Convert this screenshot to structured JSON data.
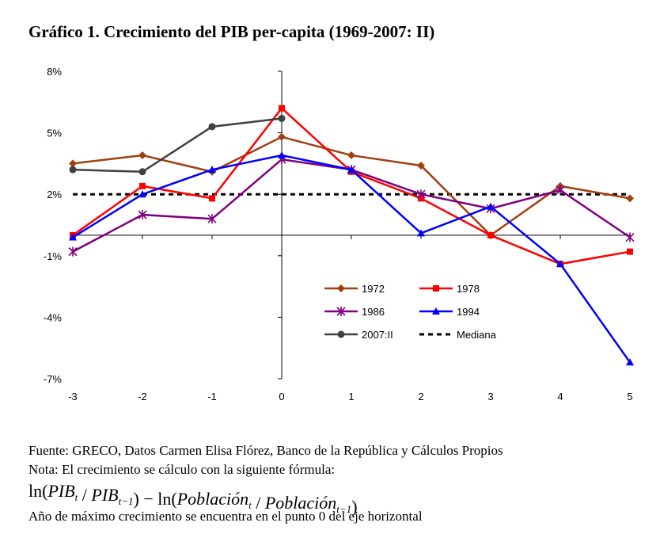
{
  "chart_data": {
    "type": "line",
    "title": "Gráfico 1. Crecimiento del PIB per-capita (1969-2007: II)",
    "x": [
      -3,
      -2,
      -1,
      0,
      1,
      2,
      3,
      4,
      5
    ],
    "xlim": [
      -3,
      5
    ],
    "xticks": [
      -3,
      -2,
      -1,
      0,
      1,
      2,
      3,
      4,
      5
    ],
    "ylim": [
      -7,
      8
    ],
    "yticks": [
      {
        "value": 8,
        "label": "8%"
      },
      {
        "value": 5,
        "label": "5%"
      },
      {
        "value": 2,
        "label": "2%"
      },
      {
        "value": -1,
        "label": "-1%"
      },
      {
        "value": -4,
        "label": "-4%"
      },
      {
        "value": -7,
        "label": "-7%"
      }
    ],
    "grid": false,
    "legend": "center right",
    "series": [
      {
        "name": "1972",
        "color": "#a0400f",
        "marker": "diamond",
        "values": [
          3.5,
          3.9,
          3.1,
          4.8,
          3.9,
          3.4,
          0,
          2.4,
          1.8
        ]
      },
      {
        "name": "1978",
        "color": "#ff0000",
        "marker": "square",
        "values": [
          0,
          2.4,
          1.8,
          6.2,
          3.1,
          1.8,
          0,
          -1.4,
          -0.8
        ]
      },
      {
        "name": "1986",
        "color": "#800080",
        "marker": "asterisk",
        "values": [
          -0.8,
          1.0,
          0.8,
          3.7,
          3.2,
          2.0,
          1.3,
          2.2,
          -0.1
        ]
      },
      {
        "name": "1994",
        "color": "#0000ff",
        "marker": "triangle",
        "values": [
          -0.1,
          2.0,
          3.2,
          3.9,
          3.2,
          0.1,
          1.4,
          -1.4,
          -6.2
        ]
      },
      {
        "name": "2007:II",
        "color": "#404040",
        "marker": "circle",
        "values": [
          3.2,
          3.1,
          5.3,
          5.7,
          null,
          null,
          null,
          null,
          null
        ]
      }
    ],
    "reference_line": {
      "name": "Mediana",
      "value": 2.0,
      "color": "#000000"
    }
  },
  "notes": {
    "source": "Fuente: GRECO, Datos Carmen Elisa Flórez, Banco de la República y Cálculos Propios",
    "note": "Nota: El crecimiento se cálculo con la siguiente fórmula:",
    "formula": [
      {
        "text": "ln(",
        "italic": false
      },
      {
        "text": "PIB",
        "italic": true
      },
      {
        "sub": "t"
      },
      {
        "text": " / ",
        "italic": false
      },
      {
        "text": "PIB",
        "italic": true
      },
      {
        "sub": "t−1"
      },
      {
        "text": ") − ln(",
        "italic": false
      },
      {
        "text": "Población",
        "italic": true
      },
      {
        "sub": "t"
      },
      {
        "text": " / ",
        "italic": false
      },
      {
        "text": "Población",
        "italic": true
      },
      {
        "sub": "t−1"
      },
      {
        "text": ")",
        "italic": false
      }
    ],
    "footnote": "Año de máximo crecimiento se encuentra en el punto 0 del eje horizontal"
  }
}
